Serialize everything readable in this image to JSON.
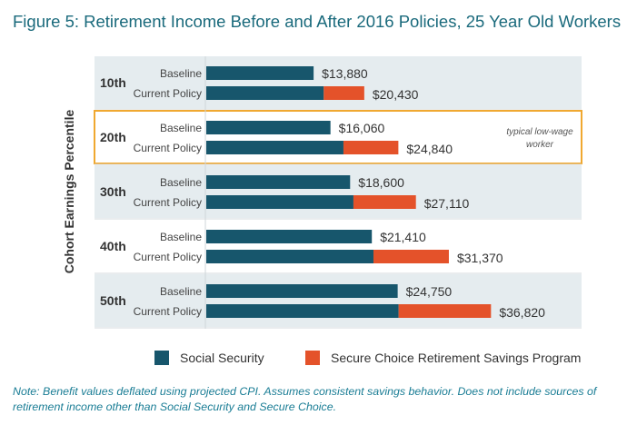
{
  "chart_data": {
    "type": "bar",
    "orientation": "horizontal-stacked",
    "title": "Figure 5: Retirement Income Before and After 2016 Policies, 25 Year Old Workers",
    "ylabel": "Cohort Earnings Percentile",
    "groups": [
      "10th",
      "20th",
      "30th",
      "40th",
      "50th"
    ],
    "bar_labels": [
      "Baseline",
      "Current Policy"
    ],
    "series": [
      {
        "name": "Social Security",
        "color": "#17566c"
      },
      {
        "name": "Secure Choice Retirement Savings Program",
        "color": "#e4522a"
      }
    ],
    "baseline_social_security": [
      13880,
      16060,
      18600,
      21410,
      24750
    ],
    "current_social_security": [
      15190,
      17740,
      19030,
      21620,
      24870
    ],
    "current_total": [
      20430,
      24840,
      27110,
      31370,
      36820
    ],
    "baseline_labels": [
      "$13,880",
      "$16,060",
      "$18,600",
      "$21,410",
      "$24,750"
    ],
    "current_labels": [
      "$20,430",
      "$24,840",
      "$27,110",
      "$31,370",
      "$36,820"
    ],
    "highlight": {
      "group": "20th",
      "annotation_line1": "typical low-wage",
      "annotation_line2": "worker",
      "color": "#f0a830"
    },
    "grid": false,
    "legend_position": "bottom"
  },
  "note": "Note: Benefit values deflated using projected CPI. Assumes consistent savings behavior. Does not include sources of retirement income other than Social Security and Secure Choice."
}
